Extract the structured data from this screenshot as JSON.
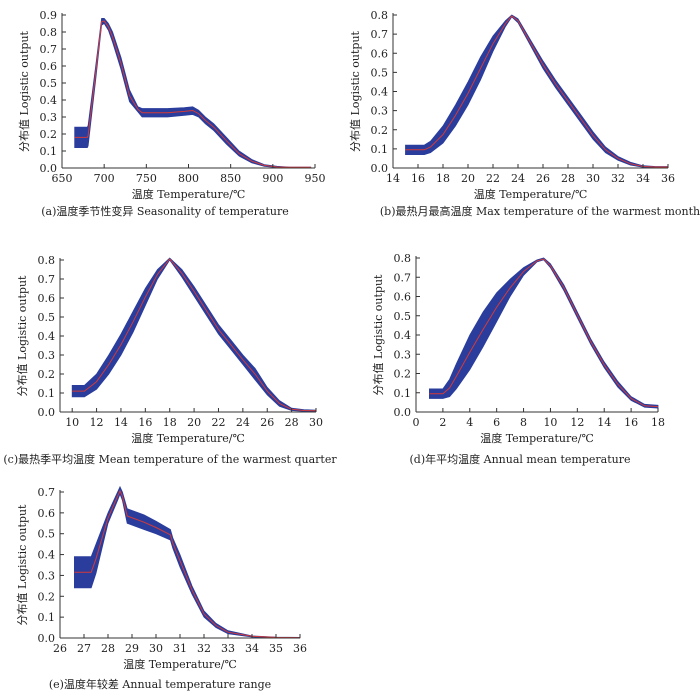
{
  "style": {
    "band_color": "#2a3d9c",
    "mean_color": "#d33a3a",
    "axis_color": "#333333"
  },
  "chart_data": [
    {
      "type": "area",
      "caption": "(a)温度季节性变异 Seasonality of temperature",
      "xlabel": "温度 Temperature/℃",
      "ylabel": "分布值 Logistic output",
      "xlim": [
        650,
        950
      ],
      "ylim": [
        0,
        0.9
      ],
      "xticks": [
        "650",
        "700",
        "750",
        "800",
        "850",
        "900",
        "950"
      ],
      "yticks": [
        "0.0",
        "0.1",
        "0.2",
        "0.3",
        "0.4",
        "0.5",
        "0.6",
        "0.7",
        "0.8",
        "0.9"
      ],
      "x": [
        665,
        680,
        681,
        690,
        697,
        700,
        705,
        710,
        720,
        730,
        740,
        745,
        755,
        775,
        795,
        805,
        812,
        820,
        830,
        845,
        860,
        875,
        890,
        905,
        920,
        945
      ],
      "upper": [
        0.24,
        0.24,
        0.25,
        0.6,
        0.88,
        0.88,
        0.85,
        0.8,
        0.65,
        0.46,
        0.36,
        0.35,
        0.35,
        0.35,
        0.355,
        0.36,
        0.34,
        0.3,
        0.26,
        0.18,
        0.1,
        0.05,
        0.02,
        0.01,
        0.005,
        0.005
      ],
      "lower": [
        0.12,
        0.12,
        0.13,
        0.52,
        0.84,
        0.85,
        0.81,
        0.74,
        0.58,
        0.39,
        0.33,
        0.3,
        0.3,
        0.3,
        0.31,
        0.315,
        0.3,
        0.26,
        0.22,
        0.14,
        0.07,
        0.03,
        0.01,
        0.003,
        0.003,
        0.003
      ],
      "mean": [
        0.18,
        0.18,
        0.19,
        0.56,
        0.86,
        0.865,
        0.83,
        0.77,
        0.615,
        0.425,
        0.345,
        0.325,
        0.325,
        0.325,
        0.333,
        0.338,
        0.32,
        0.28,
        0.24,
        0.16,
        0.085,
        0.04,
        0.015,
        0.006,
        0.004,
        0.004
      ]
    },
    {
      "type": "area",
      "caption": "(b)最热月最高温度 Max temperature of the warmest month",
      "xlabel": "温度 Temperature/℃",
      "ylabel": "分布值 Logistic output",
      "xlim": [
        14,
        36
      ],
      "ylim": [
        0,
        0.8
      ],
      "xticks": [
        "14",
        "16",
        "18",
        "20",
        "22",
        "24",
        "26",
        "28",
        "30",
        "32",
        "34",
        "36"
      ],
      "yticks": [
        "0.0",
        "0.1",
        "0.2",
        "0.3",
        "0.4",
        "0.5",
        "0.6",
        "0.7",
        "0.8"
      ],
      "x": [
        15,
        16.5,
        17,
        18,
        19,
        20,
        21,
        22,
        23,
        23.5,
        24,
        25,
        26,
        27,
        28,
        29,
        30,
        31,
        32,
        33,
        34,
        35,
        36
      ],
      "upper": [
        0.12,
        0.12,
        0.14,
        0.22,
        0.33,
        0.45,
        0.58,
        0.69,
        0.77,
        0.8,
        0.78,
        0.67,
        0.56,
        0.46,
        0.37,
        0.28,
        0.19,
        0.11,
        0.06,
        0.03,
        0.012,
        0.008,
        0.008
      ],
      "lower": [
        0.07,
        0.07,
        0.08,
        0.13,
        0.22,
        0.33,
        0.46,
        0.61,
        0.74,
        0.79,
        0.76,
        0.64,
        0.52,
        0.42,
        0.33,
        0.24,
        0.15,
        0.08,
        0.04,
        0.015,
        0.004,
        0.003,
        0.003
      ],
      "mean": [
        0.095,
        0.095,
        0.11,
        0.175,
        0.275,
        0.39,
        0.52,
        0.65,
        0.755,
        0.795,
        0.77,
        0.655,
        0.54,
        0.44,
        0.35,
        0.26,
        0.17,
        0.095,
        0.05,
        0.022,
        0.008,
        0.005,
        0.005
      ]
    },
    {
      "type": "area",
      "caption": "(c)最热季平均温度 Mean temperature of the warmest quarter",
      "xlabel": "温度 Temperature/℃",
      "ylabel": "分布值 Logistic output",
      "xlim": [
        9,
        30
      ],
      "ylim": [
        0,
        0.8
      ],
      "xticks": [
        "10",
        "12",
        "14",
        "16",
        "18",
        "20",
        "22",
        "24",
        "26",
        "28",
        "30"
      ],
      "yticks": [
        "0.0",
        "0.1",
        "0.2",
        "0.3",
        "0.4",
        "0.5",
        "0.6",
        "0.7",
        "0.8"
      ],
      "x": [
        10,
        11,
        12,
        13,
        14,
        15,
        16,
        17,
        18,
        19,
        20,
        21,
        22,
        23,
        24,
        25,
        26,
        27,
        28,
        29,
        30
      ],
      "upper": [
        0.14,
        0.14,
        0.2,
        0.3,
        0.41,
        0.53,
        0.65,
        0.75,
        0.81,
        0.75,
        0.66,
        0.56,
        0.46,
        0.38,
        0.3,
        0.23,
        0.13,
        0.06,
        0.02,
        0.012,
        0.01
      ],
      "lower": [
        0.08,
        0.08,
        0.12,
        0.2,
        0.3,
        0.42,
        0.56,
        0.7,
        0.8,
        0.71,
        0.61,
        0.51,
        0.41,
        0.33,
        0.25,
        0.17,
        0.09,
        0.03,
        0.008,
        0.004,
        0.004
      ],
      "mean": [
        0.11,
        0.11,
        0.16,
        0.25,
        0.355,
        0.475,
        0.605,
        0.725,
        0.805,
        0.73,
        0.635,
        0.535,
        0.435,
        0.355,
        0.275,
        0.2,
        0.11,
        0.045,
        0.014,
        0.008,
        0.007
      ]
    },
    {
      "type": "area",
      "caption": "(d)年平均温度 Annual mean temperature",
      "xlabel": "温度 Temperature/℃",
      "ylabel": "分布值 Logistic output",
      "xlim": [
        0,
        18
      ],
      "ylim": [
        0,
        0.8
      ],
      "xticks": [
        "0",
        "2",
        "4",
        "6",
        "8",
        "10",
        "12",
        "14",
        "16",
        "18"
      ],
      "yticks": [
        "0.0",
        "0.1",
        "0.2",
        "0.3",
        "0.4",
        "0.5",
        "0.6",
        "0.7",
        "0.8"
      ],
      "x": [
        1,
        2,
        2.5,
        3,
        4,
        5,
        6,
        7,
        8,
        9,
        9.5,
        10,
        11,
        12,
        13,
        14,
        15,
        16,
        17,
        18
      ],
      "upper": [
        0.12,
        0.12,
        0.17,
        0.25,
        0.4,
        0.52,
        0.62,
        0.69,
        0.75,
        0.79,
        0.8,
        0.77,
        0.66,
        0.52,
        0.38,
        0.26,
        0.16,
        0.08,
        0.04,
        0.035
      ],
      "lower": [
        0.07,
        0.07,
        0.08,
        0.12,
        0.22,
        0.34,
        0.47,
        0.6,
        0.71,
        0.78,
        0.79,
        0.75,
        0.63,
        0.49,
        0.35,
        0.23,
        0.13,
        0.06,
        0.025,
        0.02
      ],
      "mean": [
        0.095,
        0.095,
        0.125,
        0.185,
        0.31,
        0.43,
        0.545,
        0.645,
        0.73,
        0.785,
        0.795,
        0.76,
        0.645,
        0.505,
        0.365,
        0.245,
        0.145,
        0.07,
        0.032,
        0.028
      ]
    },
    {
      "type": "area",
      "caption": "(e)温度年较差 Annual temperature range",
      "xlabel": "温度 Temperature/℃",
      "ylabel": "分布值 Logistic output",
      "xlim": [
        26,
        36
      ],
      "ylim": [
        0,
        0.7
      ],
      "xticks": [
        "26",
        "27",
        "28",
        "29",
        "30",
        "31",
        "32",
        "33",
        "34",
        "35",
        "36"
      ],
      "yticks": [
        "0.0",
        "0.1",
        "0.2",
        "0.3",
        "0.4",
        "0.5",
        "0.6",
        "0.7"
      ],
      "x": [
        26.6,
        27.3,
        27.5,
        28,
        28.4,
        28.5,
        28.6,
        28.8,
        29.5,
        30.0,
        30.6,
        30.7,
        31,
        31.5,
        32,
        32.5,
        33,
        34,
        35,
        36
      ],
      "upper": [
        0.39,
        0.39,
        0.45,
        0.6,
        0.7,
        0.725,
        0.7,
        0.62,
        0.59,
        0.56,
        0.52,
        0.48,
        0.4,
        0.25,
        0.13,
        0.07,
        0.035,
        0.01,
        0.004,
        0.003
      ],
      "lower": [
        0.24,
        0.24,
        0.31,
        0.55,
        0.66,
        0.69,
        0.66,
        0.55,
        0.52,
        0.5,
        0.47,
        0.43,
        0.34,
        0.21,
        0.1,
        0.05,
        0.02,
        0.005,
        0.002,
        0.001
      ],
      "mean": [
        0.315,
        0.315,
        0.38,
        0.575,
        0.68,
        0.705,
        0.68,
        0.585,
        0.555,
        0.53,
        0.495,
        0.455,
        0.37,
        0.23,
        0.115,
        0.06,
        0.028,
        0.008,
        0.003,
        0.002
      ]
    }
  ]
}
